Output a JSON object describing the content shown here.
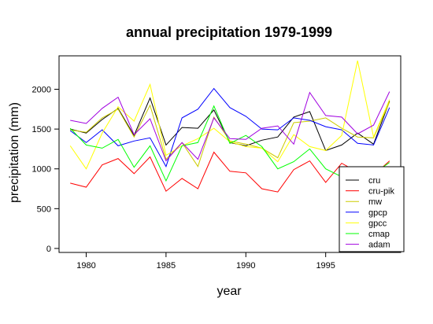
{
  "chart_data": {
    "type": "line",
    "title": "annual precipitation 1979-1999",
    "xlabel": "year",
    "ylabel": "precipitation (mm)",
    "x": [
      1979,
      1980,
      1981,
      1982,
      1983,
      1984,
      1985,
      1986,
      1987,
      1988,
      1989,
      1990,
      1991,
      1992,
      1993,
      1994,
      1995,
      1996,
      1997,
      1998,
      1999
    ],
    "xlim": [
      1978.3,
      1999.7
    ],
    "ylim": [
      -50,
      2420
    ],
    "xticks": [
      1980,
      1985,
      1990,
      1995
    ],
    "xtick_labels": [
      "1980",
      "1985",
      "1990",
      "1995"
    ],
    "yticks": [
      0,
      500,
      1000,
      1500,
      2000
    ],
    "ytick_labels": [
      "0",
      "500",
      "1000",
      "1500",
      "2000"
    ],
    "grid": false,
    "legend_position": "bottom-right",
    "series": [
      {
        "name": "cru",
        "color": "#000000",
        "values": [
          1500,
          1450,
          1620,
          1760,
          1420,
          1890,
          1300,
          1520,
          1510,
          1740,
          1330,
          1290,
          1360,
          1400,
          1650,
          1720,
          1230,
          1300,
          1450,
          1310,
          1850
        ]
      },
      {
        "name": "cru-pik",
        "color": "#ff0000",
        "values": [
          820,
          770,
          1050,
          1130,
          940,
          1150,
          720,
          880,
          750,
          1210,
          970,
          950,
          750,
          710,
          990,
          1100,
          830,
          1070,
          960,
          920,
          1100
        ]
      },
      {
        "name": "mw",
        "color": "#cccc00",
        "values": [
          1490,
          1460,
          1640,
          1750,
          1400,
          1800,
          1120,
          1330,
          1030,
          1650,
          1350,
          1310,
          1260,
          1140,
          1580,
          1600,
          1640,
          1510,
          1400,
          1390,
          1840
        ]
      },
      {
        "name": "gpcp",
        "color": "#0000ff",
        "values": [
          1480,
          1330,
          1490,
          1290,
          1350,
          1390,
          1030,
          1640,
          1750,
          2010,
          1770,
          1660,
          1500,
          1490,
          1640,
          1610,
          1530,
          1490,
          1320,
          1300,
          1770
        ]
      },
      {
        "name": "gpcc",
        "color": "#ffff00",
        "values": [
          1290,
          1000,
          1450,
          1780,
          1600,
          2060,
          1170,
          1290,
          1380,
          1510,
          1340,
          1280,
          1260,
          1090,
          1430,
          1280,
          1230,
          1420,
          2360,
          1400,
          1870
        ]
      },
      {
        "name": "cmap",
        "color": "#00ff00",
        "values": [
          1510,
          1300,
          1260,
          1370,
          1020,
          1290,
          850,
          1290,
          1330,
          1790,
          1320,
          1420,
          1280,
          1000,
          1090,
          1250,
          1000,
          900,
          null,
          940,
          1080
        ]
      },
      {
        "name": "adam",
        "color": "#a000e0",
        "values": [
          1610,
          1570,
          1760,
          1900,
          1430,
          1630,
          1100,
          1330,
          1120,
          1640,
          1380,
          1370,
          1510,
          1540,
          1310,
          1960,
          1670,
          1650,
          1440,
          1550,
          1970
        ]
      }
    ]
  }
}
